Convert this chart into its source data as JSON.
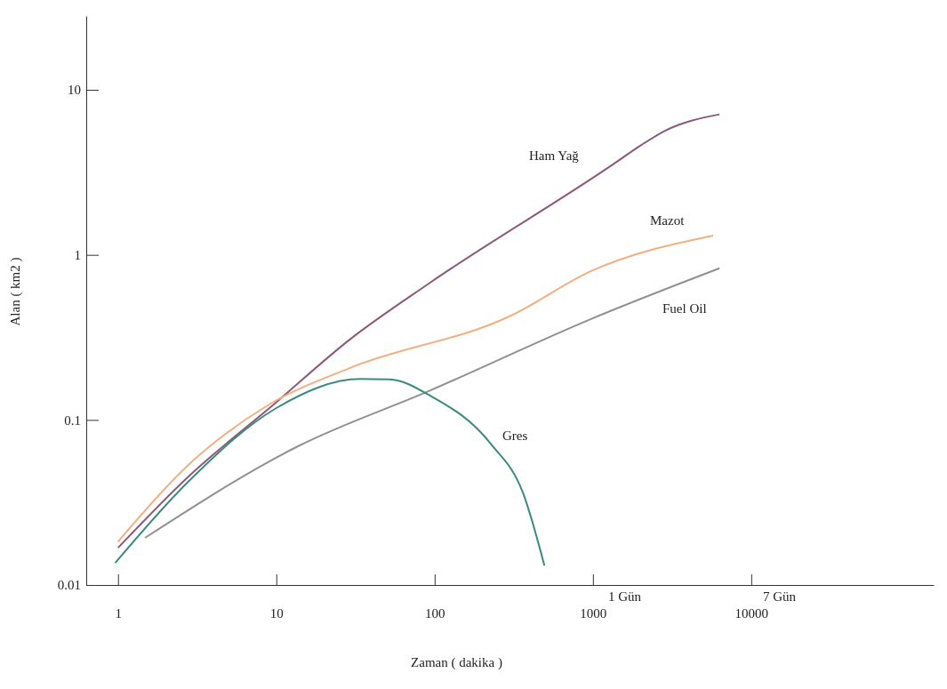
{
  "chart_data": {
    "type": "line",
    "xlabel": "Zaman ( dakika )",
    "ylabel": "Alan ( km2 )",
    "log": "xy",
    "grid": false,
    "legend": false,
    "marker": "none",
    "line_style": "solid",
    "xlim": [
      0.63,
      142000
    ],
    "ylim": [
      0.01,
      28
    ],
    "xticks": [
      1,
      10,
      100,
      1000,
      10000
    ],
    "yticks": [
      0.01,
      0.1,
      1,
      10
    ],
    "series": [
      {
        "name": "Ham Yağ",
        "color": "#8a5a78",
        "x": [
          1,
          2.76,
          10,
          29,
          94,
          1320,
          2000,
          2800,
          6300
        ],
        "values": [
          0.0168,
          0.045,
          0.128,
          0.306,
          0.68,
          3.5,
          4.6,
          5.6,
          7.1
        ]
      },
      {
        "name": "Mazot",
        "color": "#f0b080",
        "x": [
          1,
          2.76,
          9,
          29,
          306,
          980,
          5750
        ],
        "values": [
          0.0183,
          0.053,
          0.124,
          0.206,
          0.43,
          0.8,
          1.31
        ]
      },
      {
        "name": "Fuel Oil",
        "color": "#909090",
        "x": [
          1.48,
          13.6,
          94,
          980,
          6300
        ],
        "values": [
          0.0193,
          0.069,
          0.151,
          0.41,
          0.83
        ]
      },
      {
        "name": "Gres",
        "color": "#3a8a80",
        "x": [
          0.96,
          2.76,
          10,
          34,
          52,
          94,
          228,
          362,
          494
        ],
        "values": [
          0.0136,
          0.042,
          0.118,
          0.177,
          0.176,
          0.14,
          0.071,
          0.036,
          0.0131
        ]
      }
    ],
    "annotations": [
      "1 Gün",
      "7 Gün"
    ]
  }
}
